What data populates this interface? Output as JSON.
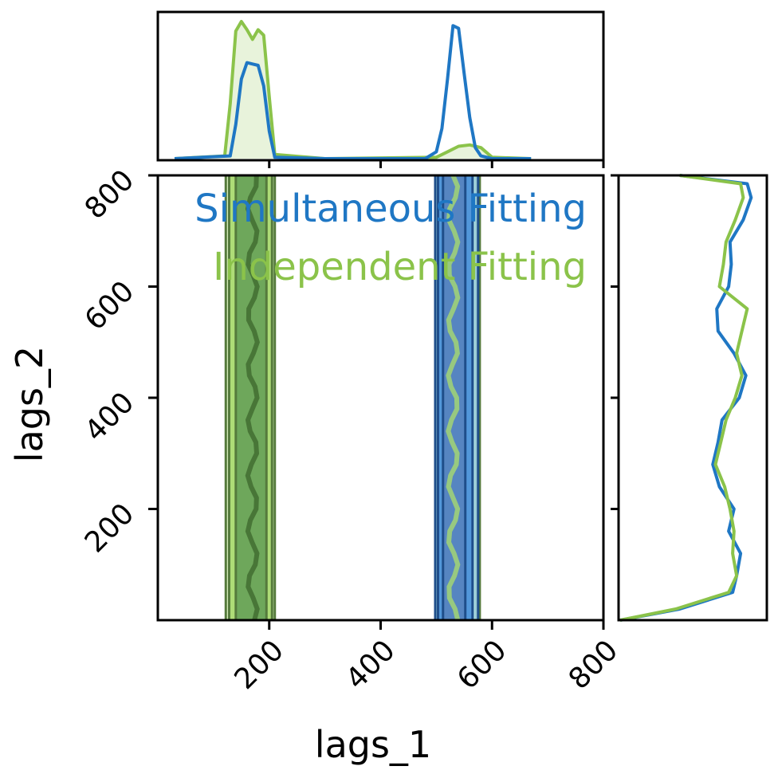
{
  "chart_data": {
    "type": "corner",
    "xlabel": "lags_1",
    "ylabel": "lags_2",
    "xlim": [
      0,
      800
    ],
    "ylim": [
      0,
      800
    ],
    "xticks": [
      "200",
      "400",
      "600",
      "800"
    ],
    "yticks": [
      "200",
      "400",
      "600",
      "800"
    ],
    "xtick_values": [
      200,
      400,
      600,
      800
    ],
    "ytick_values": [
      200,
      400,
      600,
      800
    ],
    "legend_placement": "top-right",
    "series": [
      {
        "name": "Simultaneous Fitting",
        "color": "#1f77c4",
        "contour_fills": [
          "#a6d8f0",
          "#4a90d9",
          "#5684c0",
          "#1f4e8a"
        ],
        "x_bands": [
          {
            "center": 530,
            "x68": [
              512,
              552
            ],
            "x95": [
              503,
              565
            ],
            "x99": [
              498,
              575
            ]
          }
        ],
        "marginal_x": {
          "x": [
            30,
            130,
            140,
            150,
            160,
            170,
            180,
            190,
            200,
            210,
            300,
            480,
            500,
            510,
            520,
            530,
            540,
            550,
            560,
            570,
            580,
            600,
            670
          ],
          "density": [
            0,
            0.02,
            0.25,
            0.58,
            0.7,
            0.69,
            0.68,
            0.53,
            0.2,
            0.01,
            0,
            0,
            0.05,
            0.22,
            0.58,
            0.97,
            0.95,
            0.62,
            0.3,
            0.08,
            0.02,
            0,
            0
          ]
        },
        "marginal_y": {
          "y": [
            0,
            20,
            50,
            80,
            120,
            160,
            200,
            240,
            280,
            320,
            360,
            400,
            440,
            480,
            520,
            560,
            600,
            640,
            680,
            720,
            760,
            785,
            800
          ],
          "density": [
            0,
            0.45,
            0.85,
            0.88,
            0.91,
            0.82,
            0.86,
            0.75,
            0.7,
            0.74,
            0.77,
            0.9,
            0.95,
            0.86,
            0.74,
            0.73,
            0.82,
            0.84,
            0.83,
            0.93,
            0.99,
            0.96,
            0.45
          ]
        }
      },
      {
        "name": "Independent Fitting",
        "color": "#8bc34a",
        "contour_fills": [
          "#d7f5b8",
          "#a8d96f",
          "#6aa35a",
          "#557a3c"
        ],
        "x_bands": [
          {
            "center": 170,
            "x68": [
              140,
              195
            ],
            "x95": [
              128,
              205
            ],
            "x99": [
              122,
              210
            ]
          },
          {
            "center": 540,
            "x68": [
              515,
              565
            ],
            "x95": [
              505,
              572
            ],
            "x99": [
              500,
              578
            ]
          }
        ],
        "marginal_x": {
          "x": [
            30,
            120,
            130,
            140,
            150,
            160,
            170,
            180,
            190,
            200,
            210,
            300,
            500,
            520,
            540,
            560,
            580,
            600,
            670
          ],
          "density": [
            0,
            0.02,
            0.4,
            0.93,
            1.0,
            0.94,
            0.87,
            0.94,
            0.9,
            0.45,
            0.03,
            0,
            0.01,
            0.05,
            0.09,
            0.1,
            0.08,
            0.01,
            0
          ]
        },
        "marginal_y": {
          "y": [
            0,
            20,
            50,
            80,
            120,
            160,
            200,
            240,
            280,
            320,
            360,
            400,
            440,
            480,
            520,
            560,
            600,
            640,
            680,
            720,
            760,
            785,
            800
          ],
          "density": [
            0,
            0.42,
            0.82,
            0.88,
            0.85,
            0.86,
            0.83,
            0.79,
            0.72,
            0.76,
            0.8,
            0.87,
            0.92,
            0.88,
            0.92,
            0.96,
            0.75,
            0.78,
            0.8,
            0.87,
            0.93,
            0.91,
            0.45
          ]
        }
      }
    ]
  }
}
